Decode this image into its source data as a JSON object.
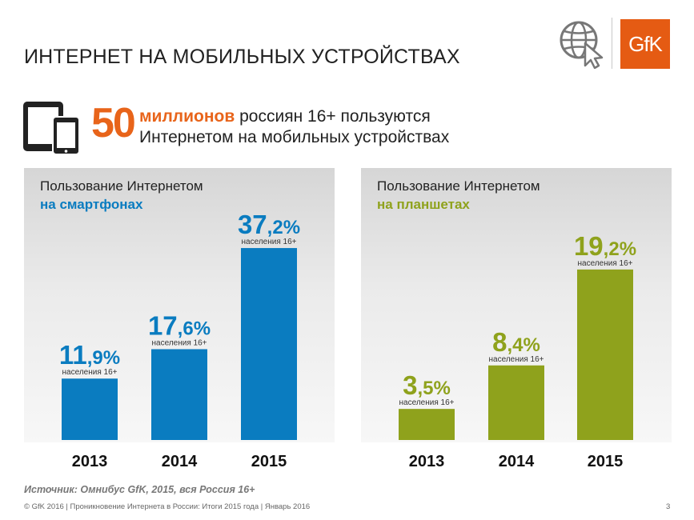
{
  "slide": {
    "title": "ИНТЕРНЕТ НА МОБИЛЬНЫХ УСТРОЙСТВАХ",
    "logo_text": "GfK",
    "headline": {
      "number": "50",
      "accent": "миллионов",
      "line1_rest": " россиян 16+ пользуются",
      "line2": "Интернетом на мобильных устройствах"
    },
    "source": "Источник: Омнибус GfK, 2015, вся Россия 16+",
    "footer": "© GfK 2016 | Проникновение Интернета в России: Итоги 2015 года | Январь 2016",
    "page_number": "3"
  },
  "colors": {
    "accent_orange": "#e8641a",
    "smartphone_blue": "#0a7cc0",
    "tablet_green": "#8fa21c"
  },
  "chart_data": [
    {
      "type": "bar",
      "title_line1": "Пользование Интернетом",
      "title_line2": "на смартфонах",
      "categories": [
        "2013",
        "2014",
        "2015"
      ],
      "values": [
        11.9,
        17.6,
        37.2
      ],
      "value_labels": [
        "11,9%",
        "17,6%",
        "37,2%"
      ],
      "sublabel": "населения 16+",
      "ylim": [
        0,
        40
      ]
    },
    {
      "type": "bar",
      "title_line1": "Пользование Интернетом",
      "title_line2": "на планшетах",
      "categories": [
        "2013",
        "2014",
        "2015"
      ],
      "values": [
        3.5,
        8.4,
        19.2
      ],
      "value_labels": [
        "3,5%",
        "8,4%",
        "19,2%"
      ],
      "sublabel": "населения 16+",
      "ylim": [
        0,
        20
      ]
    }
  ]
}
